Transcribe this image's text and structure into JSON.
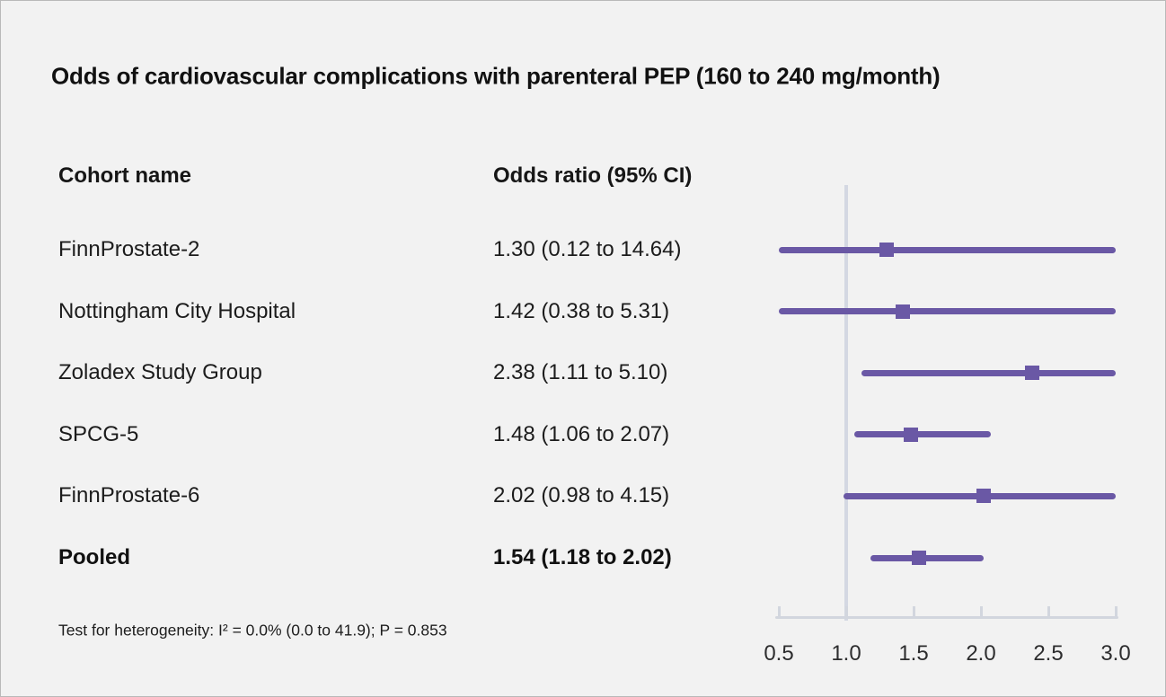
{
  "title": "Odds of cardiovascular complications with parenteral PEP (160 to 240 mg/month)",
  "table": {
    "cohort_header": "Cohort name",
    "or_header": "Odds ratio (95% CI)",
    "rows": [
      {
        "cohort": "FinnProstate-2",
        "or_text": "1.30 (0.12 to 14.64)",
        "bold": false
      },
      {
        "cohort": "Nottingham City Hospital",
        "or_text": "1.42 (0.38 to 5.31)",
        "bold": false
      },
      {
        "cohort": "Zoladex Study Group",
        "or_text": "2.38 (1.11 to 5.10)",
        "bold": false
      },
      {
        "cohort": "SPCG-5",
        "or_text": "1.48 (1.06 to 2.07)",
        "bold": false
      },
      {
        "cohort": "FinnProstate-6",
        "or_text": "2.02 (0.98 to 4.15)",
        "bold": false
      },
      {
        "cohort": "Pooled",
        "or_text": "1.54 (1.18 to 2.02)",
        "bold": true
      }
    ]
  },
  "footnote": "Test for heterogeneity: I² = 0.0% (0.0 to 41.9); P = 0.853",
  "chart_data": {
    "type": "forest",
    "orientation": "horizontal",
    "title": "Odds of cardiovascular complications with parenteral PEP (160 to 240 mg/month)",
    "axis_range": [
      0.5,
      3.0
    ],
    "axis_ticks": [
      0.5,
      1.0,
      1.5,
      2.0,
      2.5,
      3.0
    ],
    "tick_labels": [
      "0.5",
      "1.0",
      "1.5",
      "2.0",
      "2.5",
      "3.0"
    ],
    "reference_line": 1.0,
    "series": [
      {
        "name": "FinnProstate-2",
        "estimate": 1.3,
        "ci_low": 0.12,
        "ci_high": 14.64,
        "pooled": false
      },
      {
        "name": "Nottingham City Hospital",
        "estimate": 1.42,
        "ci_low": 0.38,
        "ci_high": 5.31,
        "pooled": false
      },
      {
        "name": "Zoladex Study Group",
        "estimate": 2.38,
        "ci_low": 1.11,
        "ci_high": 5.1,
        "pooled": false
      },
      {
        "name": "SPCG-5",
        "estimate": 1.48,
        "ci_low": 1.06,
        "ci_high": 2.07,
        "pooled": false
      },
      {
        "name": "FinnProstate-6",
        "estimate": 2.02,
        "ci_low": 0.98,
        "ci_high": 4.15,
        "pooled": false
      },
      {
        "name": "Pooled",
        "estimate": 1.54,
        "ci_low": 1.18,
        "ci_high": 2.02,
        "pooled": true
      }
    ],
    "marker_color": "#6a58a5",
    "reference_line_color": "#d4d8e2",
    "axis_color": "#d2d6de",
    "background_color": "#f2f2f2",
    "legend": "none",
    "grid": "off"
  }
}
